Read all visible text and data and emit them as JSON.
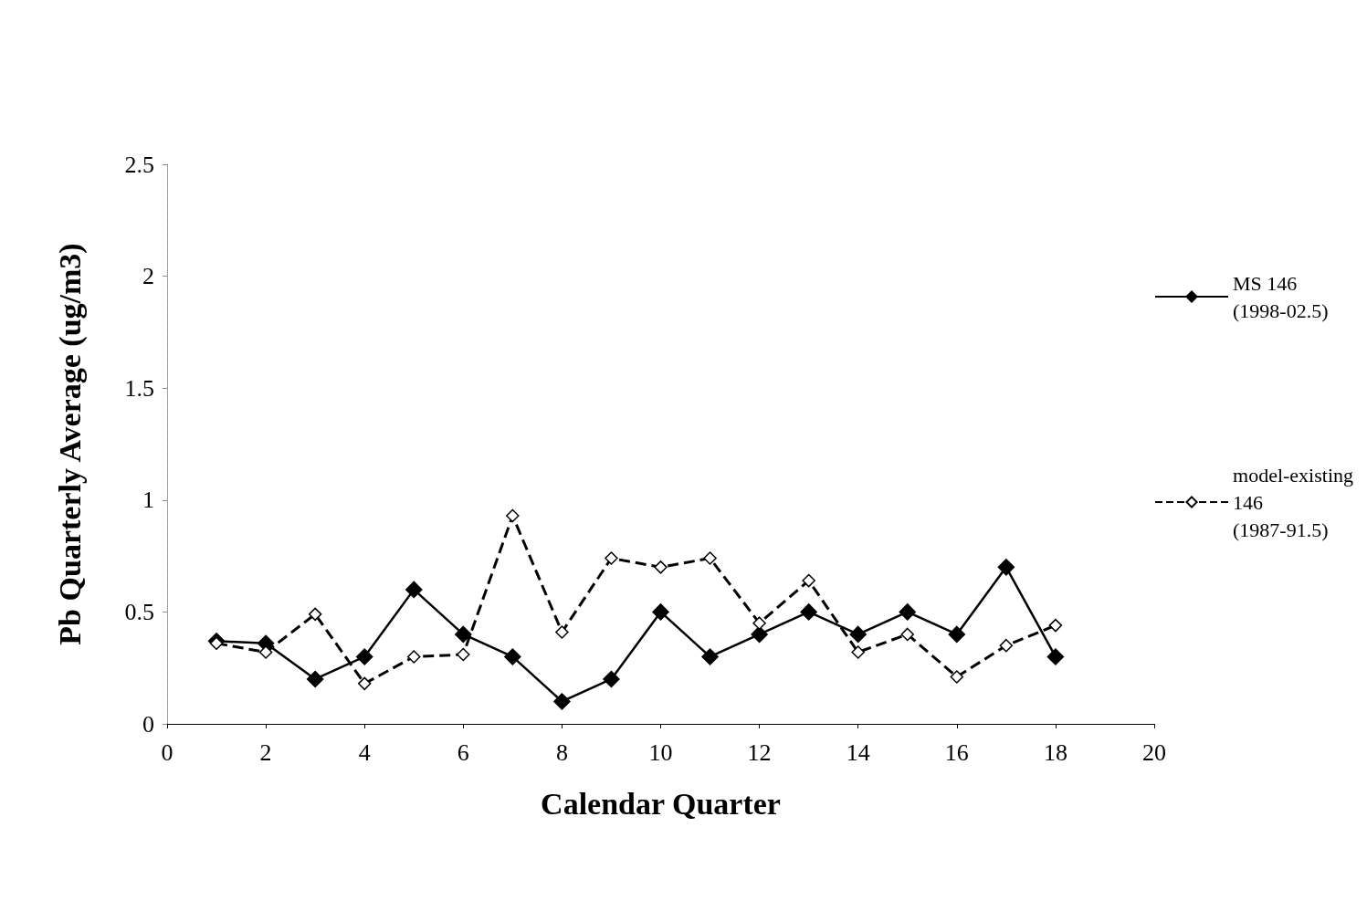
{
  "chart_data": {
    "type": "line",
    "xlabel": "Calendar Quarter",
    "ylabel": "Pb Quarterly Average (ug/m3)",
    "x": [
      1,
      2,
      3,
      4,
      5,
      6,
      7,
      8,
      9,
      10,
      11,
      12,
      13,
      14,
      15,
      16,
      17,
      18
    ],
    "series": [
      {
        "name": "MS 146 (1998-02.5)",
        "color": "#000000",
        "marker": "diamond",
        "line_style": "solid",
        "values": [
          0.37,
          0.36,
          0.2,
          0.3,
          0.6,
          0.4,
          0.3,
          0.1,
          0.2,
          0.5,
          0.3,
          0.4,
          0.5,
          0.4,
          0.5,
          0.4,
          0.7,
          0.3
        ]
      },
      {
        "name": "model-existing 146 (1987-91.5)",
        "color": "#000000",
        "marker": "diamond",
        "line_style": "dashed",
        "values": [
          0.36,
          0.32,
          0.49,
          0.18,
          0.3,
          0.31,
          0.93,
          0.41,
          0.74,
          0.7,
          0.74,
          0.45,
          0.64,
          0.32,
          0.4,
          0.21,
          0.35,
          0.44
        ]
      }
    ],
    "xlim": [
      0,
      20
    ],
    "xticks": [
      0,
      2,
      4,
      6,
      8,
      10,
      12,
      14,
      16,
      18,
      20
    ],
    "ylim": [
      0,
      2.5
    ],
    "yticks": [
      0,
      0.5,
      1,
      1.5,
      2,
      2.5
    ],
    "grid": false,
    "legend": "right"
  }
}
